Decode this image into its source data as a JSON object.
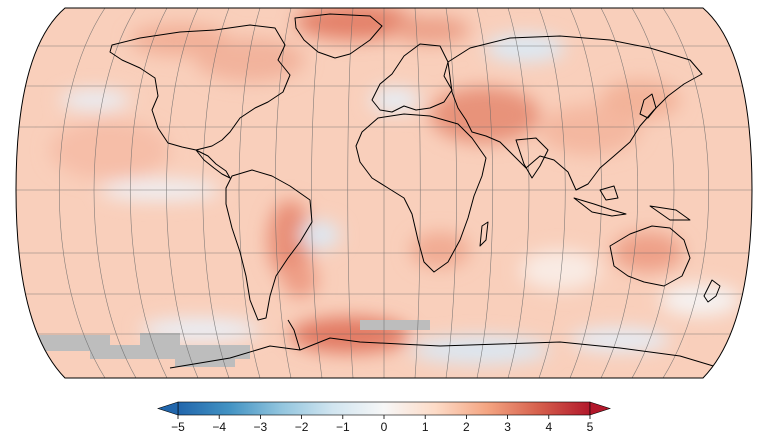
{
  "map": {
    "projection": "Robinson",
    "graticule_step_deg": 20,
    "no_data_color": "#bdbdbd",
    "land_outline_color": "#000000",
    "colormap": "RdBu_r",
    "colormap_stops": [
      "#2166ac",
      "#4393c3",
      "#92c5de",
      "#d1e5f0",
      "#f7f7f7",
      "#fddbc7",
      "#f4a582",
      "#d6604d",
      "#b2182b"
    ]
  },
  "colorbar": {
    "min": -5,
    "max": 5,
    "extend": "both",
    "ticks": [
      {
        "value": -5,
        "label": "−5"
      },
      {
        "value": -4,
        "label": "−4"
      },
      {
        "value": -3,
        "label": "−3"
      },
      {
        "value": -2,
        "label": "−2"
      },
      {
        "value": -1,
        "label": "−1"
      },
      {
        "value": 0,
        "label": "0"
      },
      {
        "value": 1,
        "label": "1"
      },
      {
        "value": 2,
        "label": "2"
      },
      {
        "value": 3,
        "label": "3"
      },
      {
        "value": 4,
        "label": "4"
      },
      {
        "value": 5,
        "label": "5"
      }
    ]
  }
}
